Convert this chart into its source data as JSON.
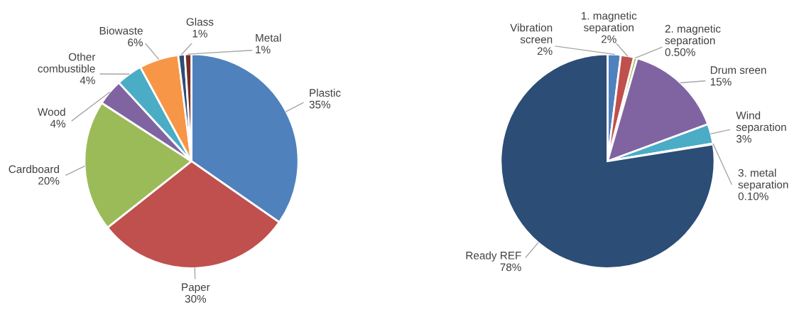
{
  "chart_data": [
    {
      "type": "pie",
      "categories": [
        "Plastic",
        "Paper",
        "Cardboard",
        "Wood",
        "Other combustible",
        "Biowaste",
        "Glass",
        "Metal"
      ],
      "values": [
        35,
        30,
        20,
        4,
        4,
        6,
        1,
        1
      ],
      "value_labels": [
        "35%",
        "30%",
        "20%",
        "4%",
        "4%",
        "6%",
        "1%",
        "1%"
      ],
      "colors": [
        "#4f81bd",
        "#c0504d",
        "#9bbb59",
        "#8064a2",
        "#4bacc6",
        "#f79646",
        "#2c4d75",
        "#772c2a"
      ]
    },
    {
      "type": "pie",
      "categories": [
        "Vibration screen",
        "1. magnetic separation",
        "2. magnetic separation",
        "Drum sreen",
        "Wind separation",
        "3. metal separation",
        "Ready REF"
      ],
      "values": [
        2,
        2,
        0.5,
        15,
        3,
        0.1,
        78
      ],
      "value_labels": [
        "2%",
        "2%",
        "0.50%",
        "15%",
        "3%",
        "0.10%",
        "78%"
      ],
      "colors": [
        "#4f81bd",
        "#c0504d",
        "#9bbb59",
        "#8064a2",
        "#4bacc6",
        "#f79646",
        "#2c4d75"
      ]
    }
  ]
}
